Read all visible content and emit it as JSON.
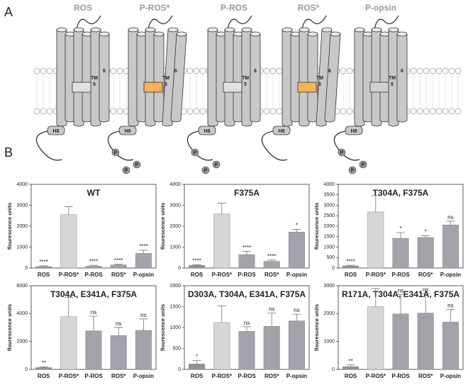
{
  "panels": {
    "a": "A",
    "b": "B"
  },
  "diagram": {
    "proteins": [
      {
        "name": "ROS",
        "box_color": "#e0e0e0",
        "phosphorylated": false,
        "active": false
      },
      {
        "name": "P-ROS*",
        "box_color": "#f4b25c",
        "phosphorylated": true,
        "active": true
      },
      {
        "name": "P-ROS",
        "box_color": "#e0e0e0",
        "phosphorylated": true,
        "active": false
      },
      {
        "name": "ROS*",
        "box_color": "#f4b25c",
        "phosphorylated": false,
        "active": true
      },
      {
        "name": "P-opsin",
        "box_color": "#d0d0d0",
        "phosphorylated": true,
        "active": false
      }
    ],
    "labels": {
      "tm": "TM",
      "tm5": "5",
      "tm6": "6",
      "h8": "H8",
      "p": "P"
    }
  },
  "chart_data": [
    {
      "type": "bar",
      "title": "WT",
      "y_label": "flourescence units",
      "categories": [
        "ROS",
        "P-ROS*",
        "P-ROS",
        "ROS*",
        "P-opsin"
      ],
      "values": [
        70,
        2550,
        90,
        150,
        700
      ],
      "errors": [
        40,
        380,
        40,
        30,
        150
      ],
      "annotations": [
        "****",
        null,
        "****",
        "****",
        "****"
      ],
      "colors": [
        "#8f8f97",
        "#d6d6d6",
        "#a2a2aa",
        "#a2a2aa",
        "#a2a2aa"
      ],
      "ylim": [
        0,
        4000
      ],
      "yticks": [
        0,
        1000,
        2000,
        3000,
        4000
      ]
    },
    {
      "type": "bar",
      "title": "F375A",
      "y_label": "flourescence units",
      "categories": [
        "ROS",
        "P-ROS*",
        "P-ROS",
        "ROS*",
        "P-opsin"
      ],
      "values": [
        130,
        2580,
        640,
        320,
        1720
      ],
      "errors": [
        20,
        520,
        150,
        60,
        130
      ],
      "annotations": [
        "****",
        null,
        "****",
        "****",
        "*"
      ],
      "colors": [
        "#8f8f97",
        "#d6d6d6",
        "#a2a2aa",
        "#a2a2aa",
        "#a2a2aa"
      ],
      "ylim": [
        0,
        4000
      ],
      "yticks": [
        0,
        1000,
        2000,
        3000,
        4000
      ]
    },
    {
      "type": "bar",
      "title": "T304A, F375A",
      "y_label": "flourescence units",
      "categories": [
        "ROS",
        "P-ROS*",
        "P-ROS",
        "ROS*",
        "P-opsin"
      ],
      "values": [
        100,
        2680,
        1420,
        1460,
        2060
      ],
      "errors": [
        30,
        780,
        280,
        80,
        180
      ],
      "annotations": [
        "****",
        null,
        "*",
        "*",
        "ns"
      ],
      "colors": [
        "#8f8f97",
        "#d6d6d6",
        "#a2a2aa",
        "#a2a2aa",
        "#a2a2aa"
      ],
      "ylim": [
        0,
        4000
      ],
      "yticks": [
        0,
        500,
        1000,
        1500,
        2000,
        2500,
        3000,
        3500,
        4000
      ]
    },
    {
      "type": "bar",
      "title": "T304A, E341A, F375A",
      "y_label": "flourescence units",
      "categories": [
        "ROS",
        "P-ROS*",
        "P-ROS",
        "ROS*",
        "P-opsin"
      ],
      "values": [
        130,
        3780,
        2770,
        2430,
        2800
      ],
      "errors": [
        50,
        1380,
        1050,
        580,
        820
      ],
      "annotations": [
        "**",
        null,
        "ns",
        "ns",
        "ns"
      ],
      "colors": [
        "#8f8f97",
        "#d6d6d6",
        "#a2a2aa",
        "#a2a2aa",
        "#a2a2aa"
      ],
      "ylim": [
        0,
        6000
      ],
      "yticks": [
        0,
        2000,
        4000,
        6000
      ]
    },
    {
      "type": "bar",
      "title": "D303A, T304A, E341A, F375A",
      "y_label": "flourescence units",
      "categories": [
        "ROS",
        "P-ROS*",
        "P-ROS",
        "ROS*",
        "P-opsin"
      ],
      "values": [
        130,
        1120,
        910,
        1030,
        1160
      ],
      "errors": [
        80,
        400,
        110,
        320,
        160
      ],
      "annotations": [
        "*",
        null,
        "ns",
        "ns",
        "ns"
      ],
      "colors": [
        "#8f8f97",
        "#d6d6d6",
        "#a2a2aa",
        "#a2a2aa",
        "#a2a2aa"
      ],
      "ylim": [
        0,
        2000
      ],
      "yticks": [
        0,
        500,
        1000,
        1500,
        2000
      ]
    },
    {
      "type": "bar",
      "title": "R171A, T304A, E341A, F375A",
      "y_label": "flourescence units",
      "categories": [
        "ROS",
        "P-ROS*",
        "P-ROS",
        "ROS*",
        "P-opsin"
      ],
      "values": [
        100,
        2250,
        1990,
        2020,
        1700
      ],
      "errors": [
        60,
        650,
        700,
        700,
        450
      ],
      "annotations": [
        "**",
        null,
        "ns",
        "ns",
        "ns"
      ],
      "colors": [
        "#8f8f97",
        "#d6d6d6",
        "#a2a2aa",
        "#a2a2aa",
        "#a2a2aa"
      ],
      "ylim": [
        0,
        3000
      ],
      "yticks": [
        0,
        1000,
        2000,
        3000
      ]
    }
  ]
}
